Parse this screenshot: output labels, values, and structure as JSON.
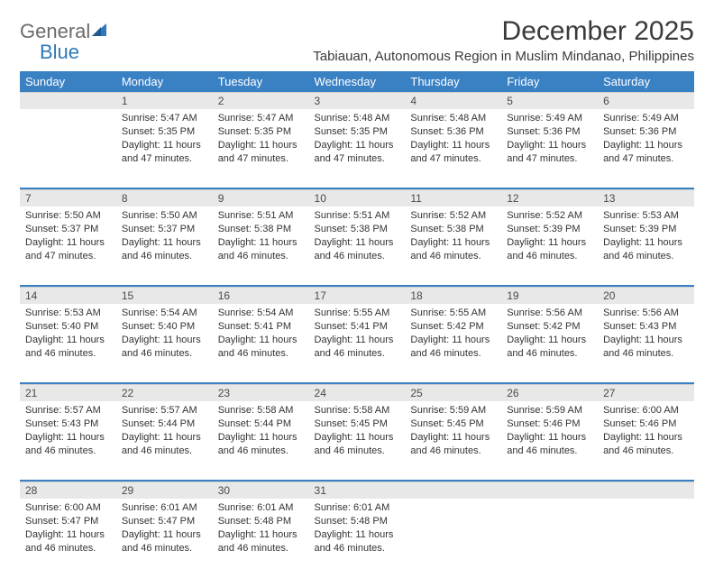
{
  "logo": {
    "word1": "General",
    "word2": "Blue"
  },
  "title": "December 2025",
  "location": "Tabiauan, Autonomous Region in Muslim Mindanao, Philippines",
  "colors": {
    "header_bg": "#3a81c4",
    "header_text": "#ffffff",
    "daynum_bg": "#e8e8e8",
    "daynum_text": "#4a4a4a",
    "body_text": "#333333",
    "title_text": "#3a3a3a",
    "logo_gray": "#6b6b6b",
    "logo_blue": "#2f79b9",
    "week_separator": "#3a81c4"
  },
  "typography": {
    "title_fontsize": 30,
    "location_fontsize": 15,
    "th_fontsize": 13,
    "daynum_fontsize": 12,
    "cell_fontsize": 11
  },
  "weekdays": [
    "Sunday",
    "Monday",
    "Tuesday",
    "Wednesday",
    "Thursday",
    "Friday",
    "Saturday"
  ],
  "weeks": [
    [
      null,
      {
        "n": "1",
        "sr": "Sunrise: 5:47 AM",
        "ss": "Sunset: 5:35 PM",
        "dl": "Daylight: 11 hours and 47 minutes."
      },
      {
        "n": "2",
        "sr": "Sunrise: 5:47 AM",
        "ss": "Sunset: 5:35 PM",
        "dl": "Daylight: 11 hours and 47 minutes."
      },
      {
        "n": "3",
        "sr": "Sunrise: 5:48 AM",
        "ss": "Sunset: 5:35 PM",
        "dl": "Daylight: 11 hours and 47 minutes."
      },
      {
        "n": "4",
        "sr": "Sunrise: 5:48 AM",
        "ss": "Sunset: 5:36 PM",
        "dl": "Daylight: 11 hours and 47 minutes."
      },
      {
        "n": "5",
        "sr": "Sunrise: 5:49 AM",
        "ss": "Sunset: 5:36 PM",
        "dl": "Daylight: 11 hours and 47 minutes."
      },
      {
        "n": "6",
        "sr": "Sunrise: 5:49 AM",
        "ss": "Sunset: 5:36 PM",
        "dl": "Daylight: 11 hours and 47 minutes."
      }
    ],
    [
      {
        "n": "7",
        "sr": "Sunrise: 5:50 AM",
        "ss": "Sunset: 5:37 PM",
        "dl": "Daylight: 11 hours and 47 minutes."
      },
      {
        "n": "8",
        "sr": "Sunrise: 5:50 AM",
        "ss": "Sunset: 5:37 PM",
        "dl": "Daylight: 11 hours and 46 minutes."
      },
      {
        "n": "9",
        "sr": "Sunrise: 5:51 AM",
        "ss": "Sunset: 5:38 PM",
        "dl": "Daylight: 11 hours and 46 minutes."
      },
      {
        "n": "10",
        "sr": "Sunrise: 5:51 AM",
        "ss": "Sunset: 5:38 PM",
        "dl": "Daylight: 11 hours and 46 minutes."
      },
      {
        "n": "11",
        "sr": "Sunrise: 5:52 AM",
        "ss": "Sunset: 5:38 PM",
        "dl": "Daylight: 11 hours and 46 minutes."
      },
      {
        "n": "12",
        "sr": "Sunrise: 5:52 AM",
        "ss": "Sunset: 5:39 PM",
        "dl": "Daylight: 11 hours and 46 minutes."
      },
      {
        "n": "13",
        "sr": "Sunrise: 5:53 AM",
        "ss": "Sunset: 5:39 PM",
        "dl": "Daylight: 11 hours and 46 minutes."
      }
    ],
    [
      {
        "n": "14",
        "sr": "Sunrise: 5:53 AM",
        "ss": "Sunset: 5:40 PM",
        "dl": "Daylight: 11 hours and 46 minutes."
      },
      {
        "n": "15",
        "sr": "Sunrise: 5:54 AM",
        "ss": "Sunset: 5:40 PM",
        "dl": "Daylight: 11 hours and 46 minutes."
      },
      {
        "n": "16",
        "sr": "Sunrise: 5:54 AM",
        "ss": "Sunset: 5:41 PM",
        "dl": "Daylight: 11 hours and 46 minutes."
      },
      {
        "n": "17",
        "sr": "Sunrise: 5:55 AM",
        "ss": "Sunset: 5:41 PM",
        "dl": "Daylight: 11 hours and 46 minutes."
      },
      {
        "n": "18",
        "sr": "Sunrise: 5:55 AM",
        "ss": "Sunset: 5:42 PM",
        "dl": "Daylight: 11 hours and 46 minutes."
      },
      {
        "n": "19",
        "sr": "Sunrise: 5:56 AM",
        "ss": "Sunset: 5:42 PM",
        "dl": "Daylight: 11 hours and 46 minutes."
      },
      {
        "n": "20",
        "sr": "Sunrise: 5:56 AM",
        "ss": "Sunset: 5:43 PM",
        "dl": "Daylight: 11 hours and 46 minutes."
      }
    ],
    [
      {
        "n": "21",
        "sr": "Sunrise: 5:57 AM",
        "ss": "Sunset: 5:43 PM",
        "dl": "Daylight: 11 hours and 46 minutes."
      },
      {
        "n": "22",
        "sr": "Sunrise: 5:57 AM",
        "ss": "Sunset: 5:44 PM",
        "dl": "Daylight: 11 hours and 46 minutes."
      },
      {
        "n": "23",
        "sr": "Sunrise: 5:58 AM",
        "ss": "Sunset: 5:44 PM",
        "dl": "Daylight: 11 hours and 46 minutes."
      },
      {
        "n": "24",
        "sr": "Sunrise: 5:58 AM",
        "ss": "Sunset: 5:45 PM",
        "dl": "Daylight: 11 hours and 46 minutes."
      },
      {
        "n": "25",
        "sr": "Sunrise: 5:59 AM",
        "ss": "Sunset: 5:45 PM",
        "dl": "Daylight: 11 hours and 46 minutes."
      },
      {
        "n": "26",
        "sr": "Sunrise: 5:59 AM",
        "ss": "Sunset: 5:46 PM",
        "dl": "Daylight: 11 hours and 46 minutes."
      },
      {
        "n": "27",
        "sr": "Sunrise: 6:00 AM",
        "ss": "Sunset: 5:46 PM",
        "dl": "Daylight: 11 hours and 46 minutes."
      }
    ],
    [
      {
        "n": "28",
        "sr": "Sunrise: 6:00 AM",
        "ss": "Sunset: 5:47 PM",
        "dl": "Daylight: 11 hours and 46 minutes."
      },
      {
        "n": "29",
        "sr": "Sunrise: 6:01 AM",
        "ss": "Sunset: 5:47 PM",
        "dl": "Daylight: 11 hours and 46 minutes."
      },
      {
        "n": "30",
        "sr": "Sunrise: 6:01 AM",
        "ss": "Sunset: 5:48 PM",
        "dl": "Daylight: 11 hours and 46 minutes."
      },
      {
        "n": "31",
        "sr": "Sunrise: 6:01 AM",
        "ss": "Sunset: 5:48 PM",
        "dl": "Daylight: 11 hours and 46 minutes."
      },
      null,
      null,
      null
    ]
  ]
}
